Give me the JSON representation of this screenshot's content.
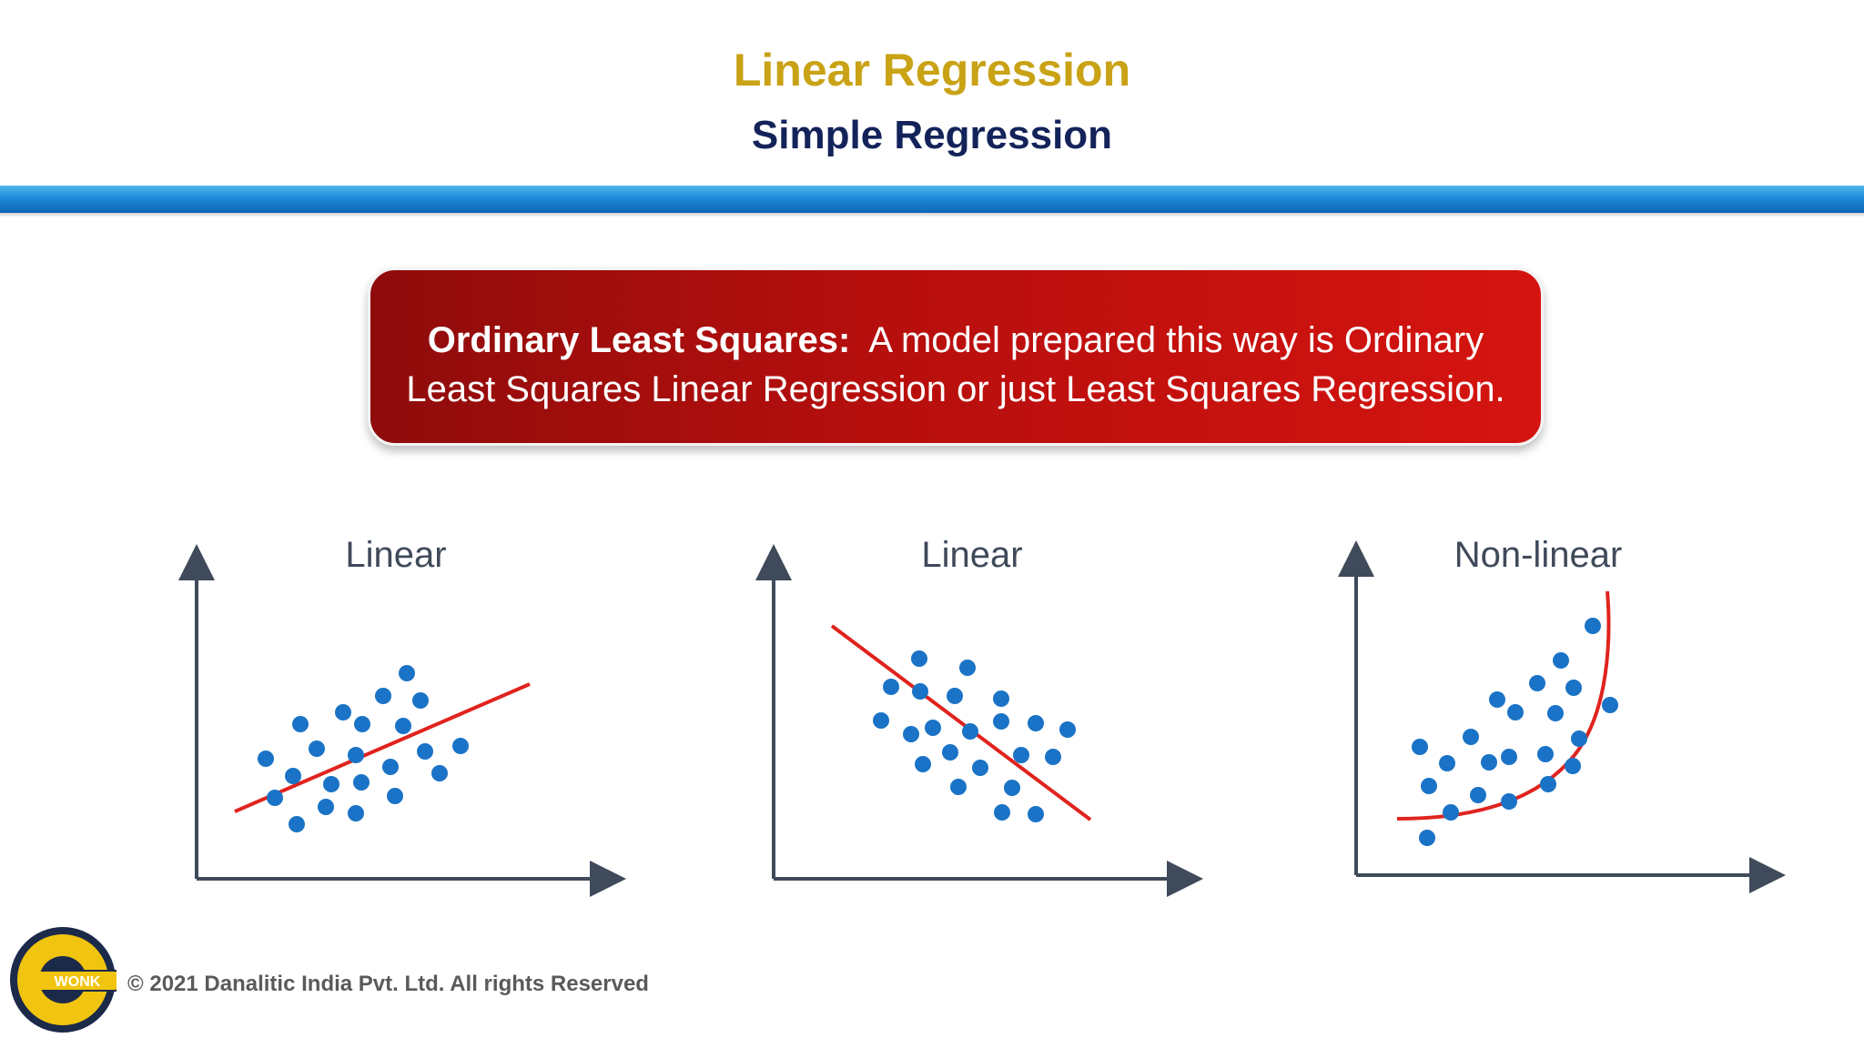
{
  "header": {
    "title": "Linear Regression",
    "subtitle": "Simple Regression"
  },
  "callout": {
    "term": "Ordinary Least Squares:",
    "text": "A model prepared this way is Ordinary Least Squares Linear Regression or just Least Squares Regression."
  },
  "plots": [
    {
      "title": "Linear"
    },
    {
      "title": "Linear"
    },
    {
      "title": "Non-linear"
    }
  ],
  "logo": {
    "text": "WONK",
    "icon": "wonk-logo-icon"
  },
  "footer": {
    "text": "© 2021 Danalitic India Pvt. Ltd. All rights Reserved"
  },
  "colors": {
    "title": "#c9a215",
    "subtitle": "#13235a",
    "rule": "#1f8ad8",
    "callout": "#c0100e",
    "points": "#1a73c6",
    "fit_line": "#e0231e",
    "axis": "#3f4a5a"
  }
}
